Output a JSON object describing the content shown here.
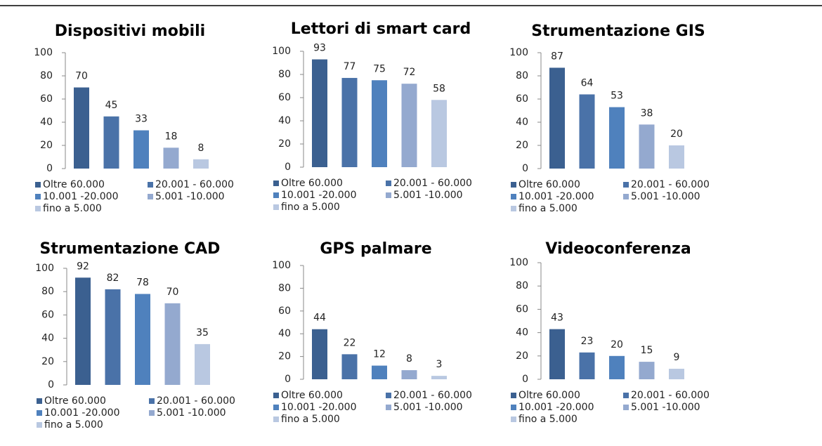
{
  "chart_data": [
    {
      "type": "bar",
      "title": "Dispositivi mobili",
      "categories": [
        "Oltre 60.000",
        "20.001 - 60.000",
        "10.001 -20.000",
        "5.001 -10.000",
        "fino a 5.000"
      ],
      "values": [
        70,
        45,
        33,
        18,
        8
      ],
      "colors": [
        "#3b6090",
        "#4a72a8",
        "#4f81bd",
        "#94a9cf",
        "#b9c8e1"
      ],
      "ylim": [
        0,
        100
      ],
      "yticks": [
        0,
        20,
        40,
        60,
        80,
        100
      ],
      "legend": "bottom"
    },
    {
      "type": "bar",
      "title": "Lettori di smart card",
      "categories": [
        "Oltre 60.000",
        "20.001 - 60.000",
        "10.001 -20.000",
        "5.001 -10.000",
        "fino a 5.000"
      ],
      "values": [
        93,
        77,
        75,
        72,
        58
      ],
      "colors": [
        "#3b6090",
        "#4a72a8",
        "#4f81bd",
        "#94a9cf",
        "#b9c8e1"
      ],
      "ylim": [
        0,
        100
      ],
      "yticks": [
        0,
        20,
        40,
        60,
        80,
        100
      ],
      "legend": "bottom"
    },
    {
      "type": "bar",
      "title": "Strumentazione GIS",
      "categories": [
        "Oltre 60.000",
        "20.001 - 60.000",
        "10.001 -20.000",
        "5.001 -10.000",
        "fino a 5.000"
      ],
      "values": [
        87,
        64,
        53,
        38,
        20
      ],
      "colors": [
        "#3b6090",
        "#4a72a8",
        "#4f81bd",
        "#94a9cf",
        "#b9c8e1"
      ],
      "ylim": [
        0,
        100
      ],
      "yticks": [
        0,
        20,
        40,
        60,
        80,
        100
      ],
      "legend": "bottom"
    },
    {
      "type": "bar",
      "title": "Strumentazione CAD",
      "categories": [
        "Oltre 60.000",
        "20.001 - 60.000",
        "10.001 -20.000",
        "5.001 -10.000",
        "fino a 5.000"
      ],
      "values": [
        92,
        82,
        78,
        70,
        35
      ],
      "colors": [
        "#3b6090",
        "#4a72a8",
        "#4f81bd",
        "#94a9cf",
        "#b9c8e1"
      ],
      "ylim": [
        0,
        100
      ],
      "yticks": [
        0,
        20,
        40,
        60,
        80,
        100
      ],
      "legend": "bottom"
    },
    {
      "type": "bar",
      "title": "GPS palmare",
      "categories": [
        "Oltre 60.000",
        "20.001 - 60.000",
        "10.001 -20.000",
        "5.001 -10.000",
        "fino a 5.000"
      ],
      "values": [
        44,
        22,
        12,
        8,
        3
      ],
      "colors": [
        "#3b6090",
        "#4a72a8",
        "#4f81bd",
        "#94a9cf",
        "#b9c8e1"
      ],
      "ylim": [
        0,
        100
      ],
      "yticks": [
        0,
        20,
        40,
        60,
        80,
        100
      ],
      "legend": "bottom"
    },
    {
      "type": "bar",
      "title": "Videoconferenza",
      "categories": [
        "Oltre 60.000",
        "20.001 - 60.000",
        "10.001 -20.000",
        "5.001 -10.000",
        "fino a 5.000"
      ],
      "values": [
        43,
        23,
        20,
        15,
        9
      ],
      "colors": [
        "#3b6090",
        "#4a72a8",
        "#4f81bd",
        "#94a9cf",
        "#b9c8e1"
      ],
      "ylim": [
        0,
        100
      ],
      "yticks": [
        0,
        20,
        40,
        60,
        80,
        100
      ],
      "legend": "bottom"
    }
  ]
}
